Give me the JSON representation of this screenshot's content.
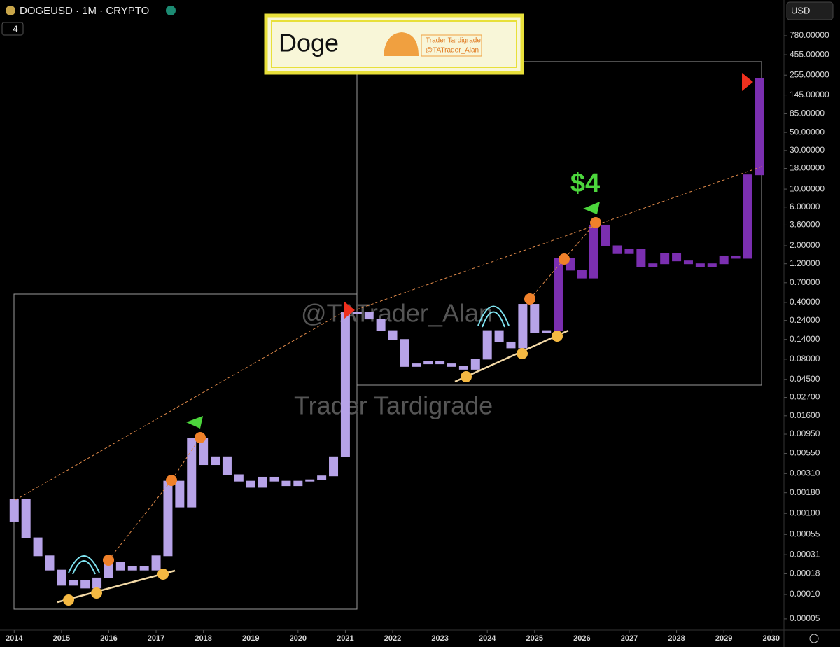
{
  "header": {
    "symbol": "DOGEUSD · 1M · CRYPTO",
    "interval_badge": "4",
    "currency": "USD"
  },
  "logo": {
    "title": "Doge",
    "brand": "Trader Tardigrade",
    "handle": "@TATrader_Alan"
  },
  "watermarks": [
    "@TATrader_Alan",
    "Trader Tardigrade"
  ],
  "chart_data": {
    "type": "candlestick",
    "annotation": "$4",
    "log_scale": true,
    "xlim": [
      2013.7,
      2030.27
    ],
    "xticks": [
      2014,
      2015,
      2016,
      2017,
      2018,
      2019,
      2020,
      2021,
      2022,
      2023,
      2024,
      2025,
      2026,
      2027,
      2028,
      2029,
      2030
    ],
    "ylim": [
      3.63e-05,
      2150
    ],
    "yticks": [
      {
        "value": 780,
        "label": "780.00000"
      },
      {
        "value": 455,
        "label": "455.00000"
      },
      {
        "value": 255,
        "label": "255.00000"
      },
      {
        "value": 145,
        "label": "145.00000"
      },
      {
        "value": 85,
        "label": "85.00000"
      },
      {
        "value": 50,
        "label": "50.00000"
      },
      {
        "value": 30,
        "label": "30.00000"
      },
      {
        "value": 18,
        "label": "18.00000"
      },
      {
        "value": 10,
        "label": "10.00000"
      },
      {
        "value": 6,
        "label": "6.00000"
      },
      {
        "value": 3.6,
        "label": "3.60000"
      },
      {
        "value": 2,
        "label": "2.00000"
      },
      {
        "value": 1.2,
        "label": "1.20000"
      },
      {
        "value": 0.7,
        "label": "0.70000"
      },
      {
        "value": 0.4,
        "label": "0.40000"
      },
      {
        "value": 0.24,
        "label": "0.24000"
      },
      {
        "value": 0.14,
        "label": "0.14000"
      },
      {
        "value": 0.08,
        "label": "0.08000"
      },
      {
        "value": 0.045,
        "label": "0.04500"
      },
      {
        "value": 0.027,
        "label": "0.02700"
      },
      {
        "value": 0.016,
        "label": "0.01600"
      },
      {
        "value": 0.0095,
        "label": "0.00950"
      },
      {
        "value": 0.0055,
        "label": "0.00550"
      },
      {
        "value": 0.0031,
        "label": "0.00310"
      },
      {
        "value": 0.0018,
        "label": "0.00180"
      },
      {
        "value": 0.001,
        "label": "0.00100"
      },
      {
        "value": 0.00055,
        "label": "0.00055"
      },
      {
        "value": 0.00031,
        "label": "0.00031"
      },
      {
        "value": 0.00018,
        "label": "0.00018"
      },
      {
        "value": 0.0001,
        "label": "0.00010"
      },
      {
        "value": 5e-05,
        "label": "0.00005"
      }
    ],
    "series": [
      {
        "color": "#b7a3e8",
        "x": [
          2014,
          2014.25,
          2014.5,
          2014.75,
          2015,
          2015.25,
          2015.5,
          2015.75,
          2016,
          2016.25,
          2016.5,
          2016.75,
          2017,
          2017.25,
          2017.5,
          2017.75,
          2018,
          2018.25,
          2018.5,
          2018.75,
          2019,
          2019.25,
          2019.5,
          2019.75,
          2020,
          2020.25,
          2020.5,
          2020.75,
          2021,
          2021.25,
          2021.5,
          2021.75,
          2022,
          2022.25,
          2022.5,
          2022.75,
          2023,
          2023.25,
          2023.5,
          2023.75,
          2024,
          2024.25,
          2024.5,
          2024.75,
          2025,
          2025.25
        ],
        "open": [
          0.0008,
          0.0015,
          0.0005,
          0.0003,
          0.0002,
          0.00013,
          0.00015,
          0.00012,
          0.00016,
          0.00025,
          0.0002,
          0.00022,
          0.0002,
          0.0003,
          0.0025,
          0.0012,
          0.0085,
          0.004,
          0.005,
          0.003,
          0.0025,
          0.0021,
          0.0028,
          0.0025,
          0.0022,
          0.0025,
          0.0026,
          0.0029,
          0.005,
          0.3,
          0.3,
          0.25,
          0.18,
          0.14,
          0.065,
          0.07,
          0.075,
          0.07,
          0.065,
          0.06,
          0.08,
          0.18,
          0.13,
          0.11,
          0.38,
          0.17
        ],
        "close": [
          0.0015,
          0.0005,
          0.0003,
          0.0002,
          0.00013,
          0.00015,
          0.00012,
          0.00016,
          0.00025,
          0.0002,
          0.00022,
          0.0002,
          0.0003,
          0.0025,
          0.0012,
          0.0085,
          0.004,
          0.005,
          0.003,
          0.0025,
          0.0021,
          0.0028,
          0.0025,
          0.0022,
          0.0025,
          0.0026,
          0.0029,
          0.005,
          0.3,
          0.3,
          0.25,
          0.18,
          0.14,
          0.065,
          0.07,
          0.075,
          0.07,
          0.065,
          0.06,
          0.08,
          0.18,
          0.13,
          0.11,
          0.38,
          0.17,
          0.18
        ]
      },
      {
        "color": "#7b2fb0",
        "x": [
          2025.5,
          2025.75,
          2026,
          2026.25,
          2026.5,
          2026.75,
          2027,
          2027.25,
          2027.5,
          2027.75,
          2028,
          2028.25,
          2028.5,
          2028.75,
          2029,
          2029.25,
          2029.5,
          2029.75
        ],
        "open": [
          0.18,
          1.4,
          1.0,
          0.8,
          3.6,
          2.0,
          1.6,
          1.8,
          1.1,
          1.2,
          1.6,
          1.3,
          1.2,
          1.1,
          1.2,
          1.5,
          1.4,
          15
        ],
        "close": [
          1.4,
          1.0,
          0.8,
          3.6,
          2.0,
          1.6,
          1.8,
          1.1,
          1.2,
          1.6,
          1.3,
          1.2,
          1.1,
          1.2,
          1.5,
          1.4,
          15,
          230
        ]
      }
    ]
  }
}
